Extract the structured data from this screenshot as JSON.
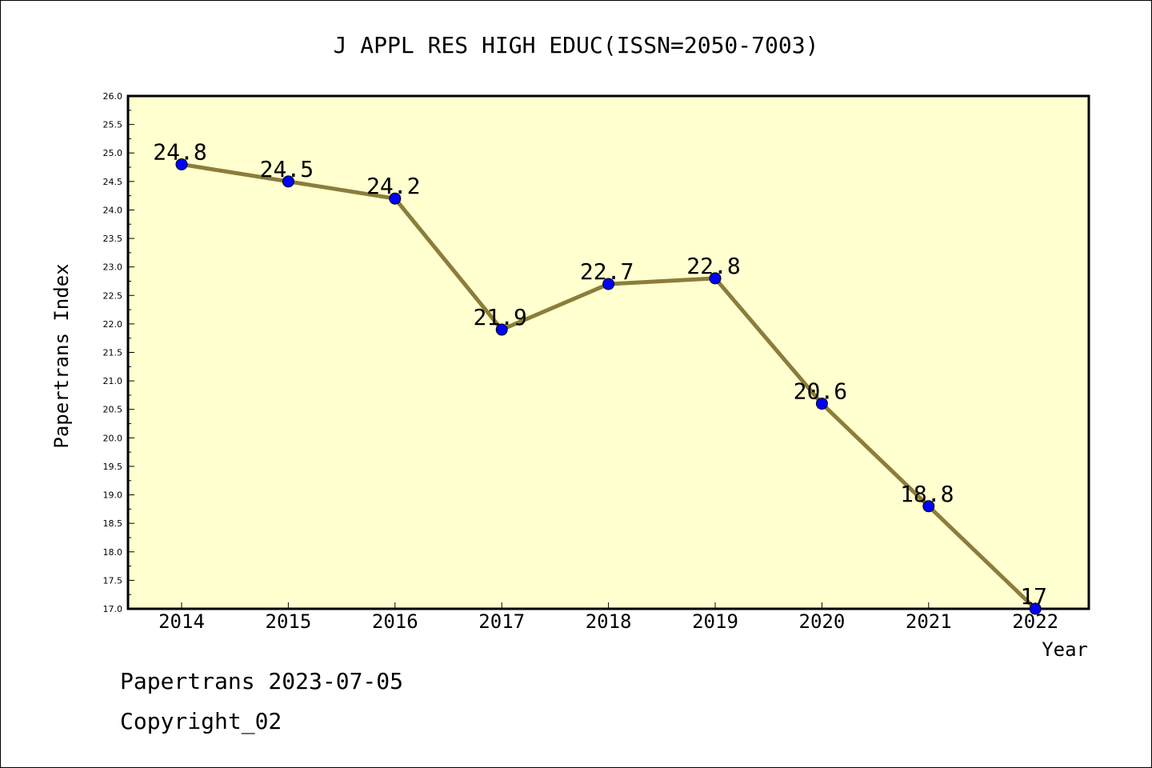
{
  "chart_data": {
    "type": "line",
    "title": "J APPL RES HIGH EDUC(ISSN=2050-7003)",
    "xlabel": "Year",
    "ylabel": "Papertrans Index",
    "categories": [
      "2014",
      "2015",
      "2016",
      "2017",
      "2018",
      "2019",
      "2020",
      "2021",
      "2022"
    ],
    "series": [
      {
        "values": [
          24.8,
          24.5,
          24.2,
          21.9,
          22.7,
          22.8,
          20.6,
          18.8,
          17
        ]
      }
    ],
    "data_labels": [
      "24.8",
      "24.5",
      "24.2",
      "21.9",
      "22.7",
      "22.8",
      "20.6",
      "18.8",
      "17"
    ],
    "ylim": [
      17.0,
      26.0
    ],
    "yticks": [
      "17.0",
      "17.5",
      "18.0",
      "18.5",
      "19.0",
      "19.5",
      "20.0",
      "20.5",
      "21.0",
      "21.5",
      "22.0",
      "22.5",
      "23.0",
      "23.5",
      "24.0",
      "24.5",
      "25.0",
      "25.5",
      "26.0"
    ],
    "grid": false,
    "colors": {
      "plot_background": "#ffffd0",
      "line": "#8b7d3a",
      "marker": "#0000ff"
    }
  },
  "footer": {
    "line1": "Papertrans 2023-07-05",
    "line2": "Copyright_02"
  }
}
